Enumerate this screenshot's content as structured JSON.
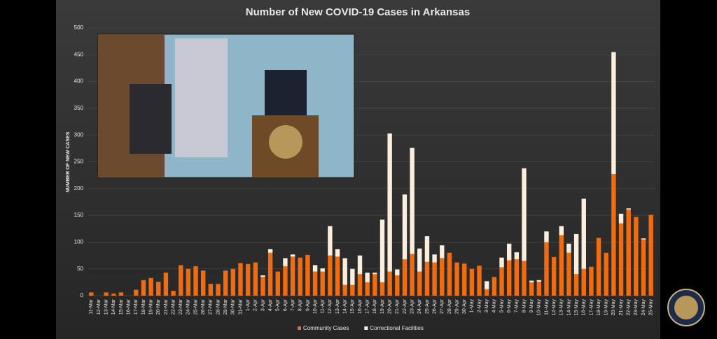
{
  "chart_data": {
    "type": "bar",
    "stacked": true,
    "title": "Number of New COVID-19 Cases in Arkansas",
    "y_label": "NUMBER OF NEW CASES",
    "categories": [
      "11-Mar",
      "12-Mar",
      "13-Mar",
      "14-Mar",
      "15-Mar",
      "16-Mar",
      "17-Mar",
      "18-Mar",
      "19-Mar",
      "20-Mar",
      "21-Mar",
      "22-Mar",
      "23-Mar",
      "24-Mar",
      "25-Mar",
      "26-Mar",
      "27-Mar",
      "28-Mar",
      "29-Mar",
      "30-Mar",
      "31-Mar",
      "1-Apr",
      "2-Apr",
      "3-Apr",
      "4-Apr",
      "5-Apr",
      "6-Apr",
      "7-Apr",
      "8-Apr",
      "9-Apr",
      "10-Apr",
      "11-Apr",
      "12-Apr",
      "13-Apr",
      "14-Apr",
      "15-Apr",
      "16-Apr",
      "17-Apr",
      "18-Apr",
      "19-Apr",
      "20-Apr",
      "21-Apr",
      "22-Apr",
      "23-Apr",
      "24-Apr",
      "25-Apr",
      "26-Apr",
      "27-Apr",
      "28-Apr",
      "29-Apr",
      "30-Apr",
      "1-May",
      "2-May",
      "3-May",
      "4-May",
      "5-May",
      "6-May",
      "7-May",
      "8-May",
      "9-May",
      "10-May",
      "11-May",
      "12-May",
      "13-May",
      "14-May",
      "15-May",
      "16-May",
      "17-May",
      "18-May",
      "19-May",
      "20-May",
      "21-May",
      "22-May",
      "23-May",
      "24-May",
      "25-May"
    ],
    "series": [
      {
        "name": "Community Cases",
        "color": "#f26b0f",
        "values": [
          6,
          0,
          6,
          4,
          6,
          0,
          11,
          29,
          33,
          26,
          43,
          9,
          57,
          50,
          55,
          47,
          22,
          22,
          47,
          50,
          61,
          59,
          62,
          35,
          80,
          45,
          55,
          73,
          71,
          76,
          45,
          45,
          75,
          73,
          20,
          20,
          40,
          25,
          40,
          25,
          45,
          38,
          68,
          78,
          45,
          63,
          62,
          70,
          80,
          62,
          60,
          50,
          56,
          12,
          35,
          53,
          66,
          68,
          65,
          25,
          26,
          100,
          72,
          113,
          80,
          40,
          50,
          54,
          108,
          80,
          227,
          135,
          161,
          147,
          105,
          151
        ]
      },
      {
        "name": "Correctional Facilities",
        "color": "#fbeedd",
        "values": [
          0,
          0,
          0,
          0,
          0,
          0,
          0,
          0,
          0,
          0,
          0,
          0,
          0,
          0,
          0,
          0,
          0,
          0,
          0,
          0,
          0,
          0,
          0,
          3,
          7,
          0,
          15,
          4,
          0,
          0,
          12,
          6,
          55,
          14,
          50,
          30,
          35,
          18,
          3,
          117,
          258,
          11,
          121,
          198,
          43,
          48,
          15,
          24,
          0,
          0,
          0,
          0,
          0,
          15,
          0,
          18,
          31,
          13,
          173,
          3,
          3,
          20,
          0,
          17,
          17,
          75,
          131,
          0,
          0,
          0,
          228,
          18,
          2,
          0,
          2,
          0
        ]
      }
    ],
    "ylim": [
      0,
      500
    ],
    "yticks": [
      0,
      50,
      100,
      150,
      200,
      250,
      300,
      350,
      400,
      450,
      500
    ],
    "grid": true
  }
}
